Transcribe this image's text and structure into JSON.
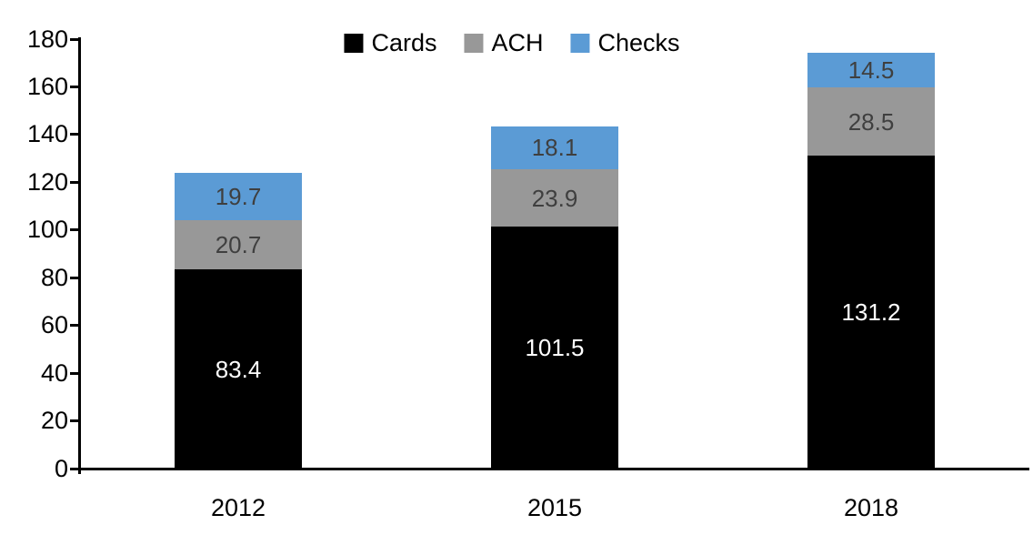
{
  "chart_data": {
    "type": "bar",
    "stacked": true,
    "title": "",
    "xlabel": "",
    "ylabel": "",
    "categories": [
      "2012",
      "2015",
      "2018"
    ],
    "series": [
      {
        "name": "Cards",
        "color": "#000000",
        "label_color": "#FFFFFF",
        "values": [
          83.4,
          101.5,
          131.2
        ]
      },
      {
        "name": "ACH",
        "color": "#989898",
        "label_color": "#3F3F3F",
        "values": [
          20.7,
          23.9,
          28.5
        ]
      },
      {
        "name": "Checks",
        "color": "#5B9BD5",
        "label_color": "#3F3F3F",
        "values": [
          19.7,
          18.1,
          14.5
        ]
      }
    ],
    "totals": [
      123.8,
      143.5,
      174.2
    ],
    "ylim": [
      0,
      180
    ],
    "yticks": [
      0,
      20,
      40,
      60,
      80,
      100,
      120,
      140,
      160,
      180
    ],
    "grid": false,
    "legend_position": "top-center",
    "legend_labels": [
      "Cards",
      "ACH",
      "Checks"
    ],
    "axis_color": "#000000",
    "background_color": "#FFFFFF"
  }
}
